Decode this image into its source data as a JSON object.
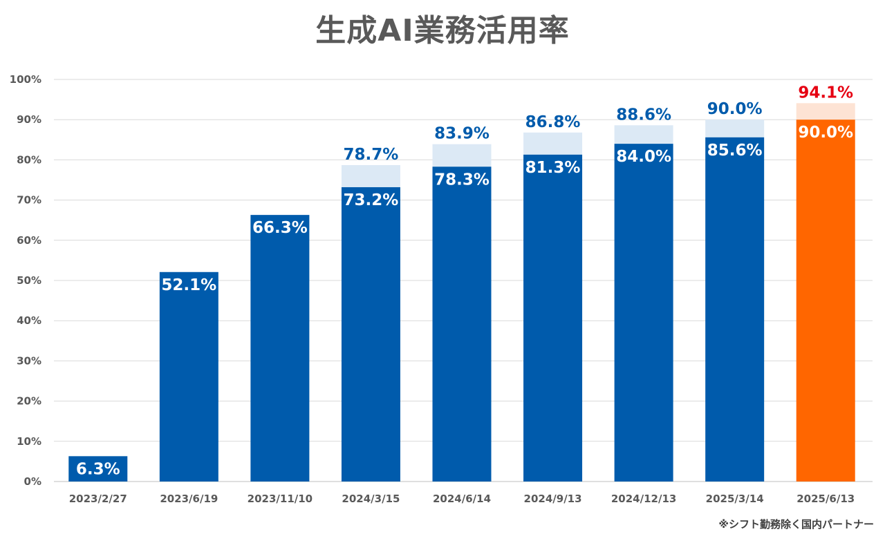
{
  "chart_data": {
    "type": "bar",
    "title": "生成AI業務活用率",
    "footnote": "※シフト勤務除く国内パートナー",
    "categories": [
      "2023/2/27",
      "2023/6/19",
      "2023/11/10",
      "2024/3/15",
      "2024/6/14",
      "2024/9/13",
      "2024/12/13",
      "2025/3/14",
      "2025/6/13"
    ],
    "series": [
      {
        "values": [
          6.3,
          52.1,
          66.3,
          73.2,
          78.3,
          81.3,
          84.0,
          85.6,
          90.0
        ],
        "labels": [
          "6.3%",
          "52.1%",
          "66.3%",
          "73.2%",
          "78.3%",
          "81.3%",
          "84.0%",
          "85.6%",
          "90.0%"
        ]
      },
      {
        "values": [
          null,
          null,
          null,
          78.7,
          83.9,
          86.8,
          88.6,
          90.0,
          94.1
        ],
        "labels": [
          "",
          "",
          "",
          "78.7%",
          "83.9%",
          "86.8%",
          "88.6%",
          "90.0%",
          "94.1%"
        ]
      }
    ],
    "y_ticks": [
      "0%",
      "10%",
      "20%",
      "30%",
      "40%",
      "50%",
      "60%",
      "70%",
      "80%",
      "90%",
      "100%"
    ],
    "ylim": [
      0,
      100
    ],
    "grid": true,
    "colors": {
      "bar": "#005bac",
      "bar_light": "#dce9f5",
      "highlight_bar": "#ff6600",
      "highlight_light": "#fde3d4",
      "label_top": "#005bac",
      "label_top_highlight": "#e60012",
      "label_inside": "#ffffff",
      "grid": "#d9d9d9",
      "tick": "#595959"
    }
  }
}
